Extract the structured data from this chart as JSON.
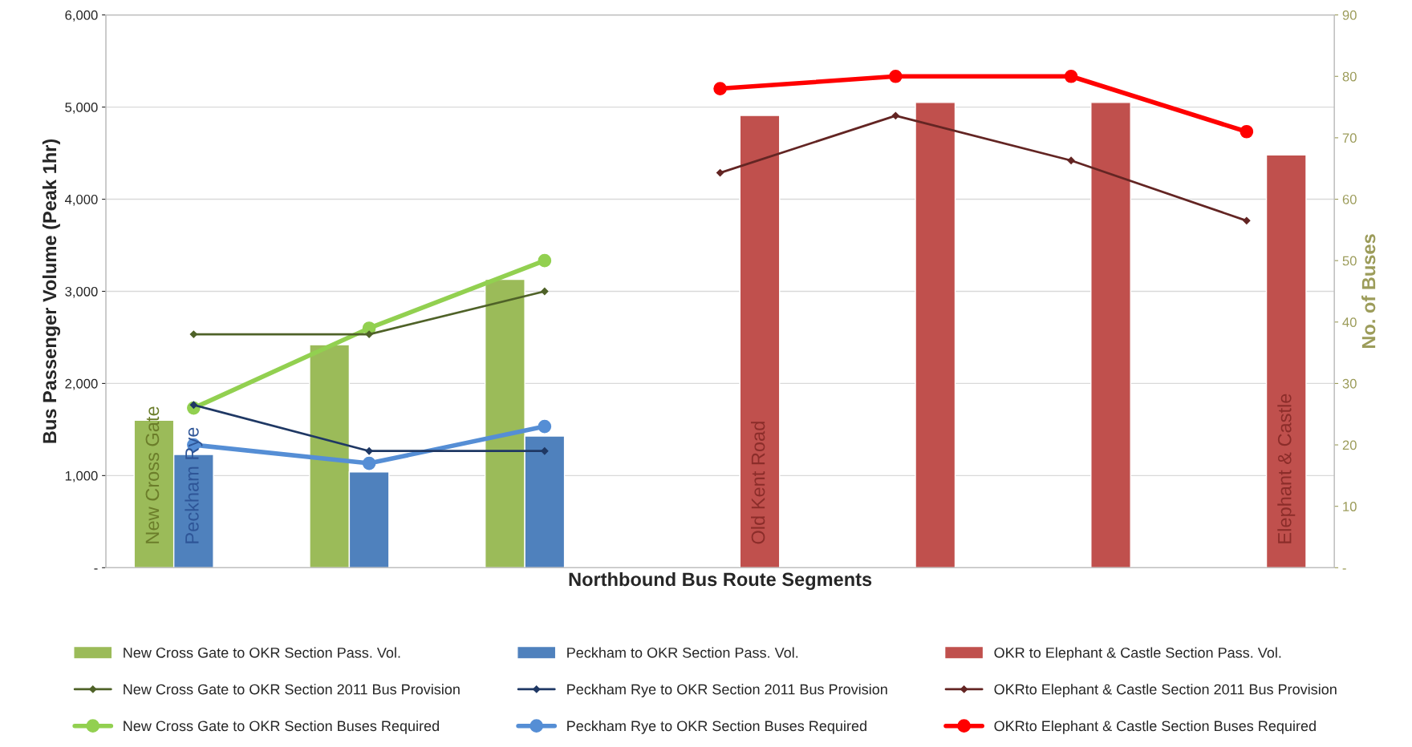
{
  "chart_data": {
    "type": "bar",
    "xlabel": "Northbound Bus Route Segments",
    "ylabel": "Bus Passenger Volume (Peak 1hr)",
    "y2label": "No. of Buses",
    "categories": [
      null,
      null,
      null,
      null,
      null,
      null,
      null
    ],
    "ylim": [
      0,
      6000
    ],
    "yticks": [
      {
        "value": 0,
        "label": "-"
      },
      {
        "value": 1000,
        "label": "1,000"
      },
      {
        "value": 2000,
        "label": "2,000"
      },
      {
        "value": 3000,
        "label": "3,000"
      },
      {
        "value": 4000,
        "label": "4,000"
      },
      {
        "value": 5000,
        "label": "5,000"
      },
      {
        "value": 6000,
        "label": "6,000"
      }
    ],
    "y2lim": [
      0,
      90
    ],
    "y2ticks": [
      {
        "value": 0,
        "label": "-"
      },
      10,
      20,
      30,
      40,
      50,
      60,
      70,
      80,
      90
    ],
    "grid": "y",
    "legend": "bottom",
    "tick_labels": "y",
    "annotations": [
      "New Cross Gate",
      "Peckham Rye",
      "Old Kent Road",
      "Elephant & Castle"
    ],
    "series": [
      {
        "name": "New Cross Gate to OKR Section Pass. Vol.",
        "color": "#9bbb59",
        "values": [
          1600,
          2420,
          3130,
          null,
          null,
          null,
          null
        ]
      },
      {
        "name": "Peckham to OKR Section Pass. Vol.",
        "color": "#4f81bd",
        "values": [
          1230,
          1040,
          1430,
          null,
          null,
          null,
          null
        ]
      },
      {
        "name": "OKR to Elephant & Castle Section Pass. Vol.",
        "color": "#c0504d",
        "values": [
          null,
          null,
          null,
          4910,
          5050,
          5050,
          4480
        ]
      },
      {
        "name": "New Cross Gate to OKR Section 2011 Bus Provision",
        "type": "line",
        "axis": "y2",
        "marker": "diamond",
        "color": "#4f6228",
        "values": [
          38,
          38,
          45,
          null,
          null,
          null,
          null
        ]
      },
      {
        "name": "Peckham Rye to OKR Section 2011 Bus Provision",
        "type": "line",
        "axis": "y2",
        "marker": "diamond",
        "color": "#1f3864",
        "values": [
          26.5,
          19,
          19,
          null,
          null,
          null,
          null
        ]
      },
      {
        "name": "OKRto Elephant & Castle Section 2011 Bus Provision",
        "type": "line",
        "axis": "y2",
        "marker": "diamond",
        "color": "#632523",
        "values": [
          null,
          null,
          null,
          64.3,
          73.6,
          66.3,
          56.5
        ]
      },
      {
        "name": "New Cross Gate to OKR Section Buses Required",
        "type": "line",
        "axis": "y2",
        "marker": "circle",
        "color": "#92d050",
        "values": [
          26,
          39,
          50,
          null,
          null,
          null,
          null
        ]
      },
      {
        "name": "Peckham Rye to OKR Section Buses Required",
        "type": "line",
        "axis": "y2",
        "marker": "circle",
        "color": "#558ed5",
        "values": [
          20,
          17,
          23,
          null,
          null,
          null,
          null
        ]
      },
      {
        "name": "OKRto Elephant & Castle Section Buses Required",
        "type": "line",
        "axis": "y2",
        "marker": "circle",
        "color": "#ff0000",
        "values": [
          null,
          null,
          null,
          78,
          80,
          80,
          71
        ]
      }
    ]
  }
}
